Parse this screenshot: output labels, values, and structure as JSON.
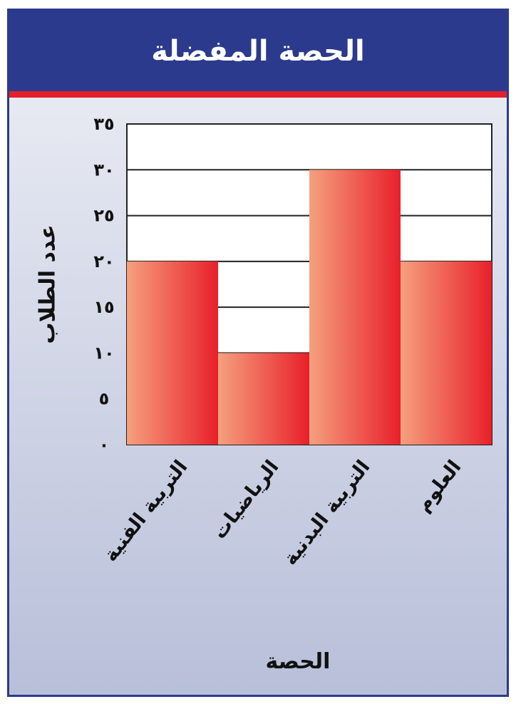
{
  "chart_data": {
    "type": "bar",
    "title": "الحصة المفضلة",
    "xlabel": "الحصة",
    "ylabel": "عدد الطلاب",
    "categories": [
      "التربية الفنية",
      "الرياضيات",
      "التربية البدنية",
      "العلوم"
    ],
    "values": [
      20,
      10,
      30,
      20
    ],
    "ylim": [
      0,
      35
    ],
    "yticks": [
      0,
      5,
      10,
      15,
      20,
      25,
      30,
      35
    ],
    "ytick_labels": [
      "٠",
      "٥",
      "١٠",
      "١٥",
      "٢٠",
      "٢٥",
      "٣٠",
      "٣٥"
    ],
    "grid": true,
    "bar_color_light": "#f5a07e",
    "bar_color_dark": "#e8202a",
    "title_bar_color": "#2b3a8c",
    "accent_line_color": "#e3202a"
  }
}
